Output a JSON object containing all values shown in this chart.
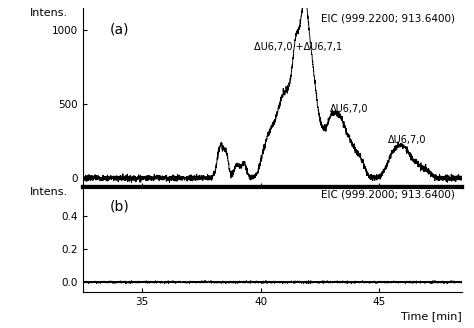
{
  "title_a": "EIC (999.2200; 913.6400)",
  "title_b": "EIC (999.2000; 913.6400)",
  "ylabel": "Intens.",
  "xlabel": "Time [min]",
  "xlim": [
    32.5,
    48.5
  ],
  "ylim_a": [
    -60,
    1150
  ],
  "ylim_b": [
    -0.06,
    0.58
  ],
  "yticks_a": [
    0,
    500,
    1000
  ],
  "yticks_b": [
    0.0,
    0.2,
    0.4
  ],
  "xticks": [
    35,
    40,
    45
  ],
  "label_a": "(a)",
  "label_b": "(b)",
  "annot1": "ΔU6,7,0 +ΔU6,7,1",
  "annot2": "ΔU6,7,0",
  "annot3": "ΔU6,7,0",
  "bg_color": "#ffffff",
  "line_color": "#000000",
  "axis_color": "#000000",
  "separator_lw": 3.0
}
